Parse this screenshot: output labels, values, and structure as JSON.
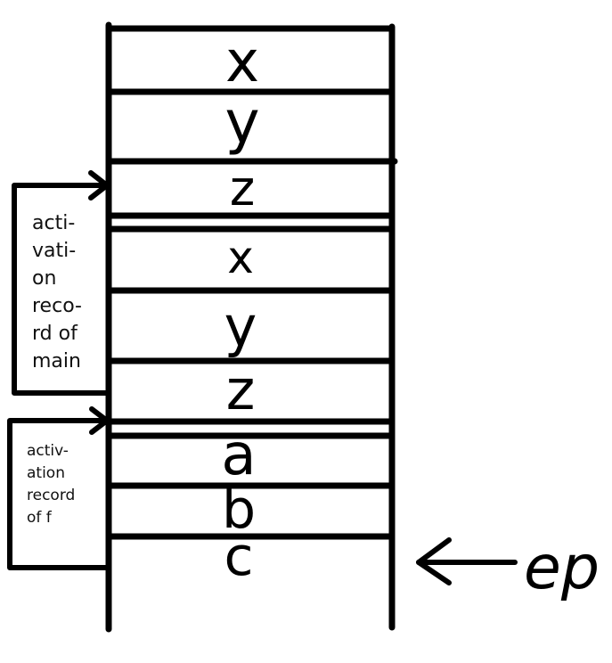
{
  "stack": {
    "cells": [
      "x",
      "y",
      "z",
      "x",
      "y",
      "z",
      "a",
      "b",
      "c"
    ]
  },
  "annotations": {
    "main_record_lines": [
      "acti-",
      "vati-",
      "on",
      "reco-",
      "rd of",
      "main"
    ],
    "f_record_lines": [
      "activ-",
      "ation",
      "record",
      "of f"
    ]
  },
  "pointer": {
    "label": "ep",
    "icon": "left-arrow-icon"
  },
  "colors": {
    "stroke": "#000000",
    "background": "#ffffff"
  }
}
